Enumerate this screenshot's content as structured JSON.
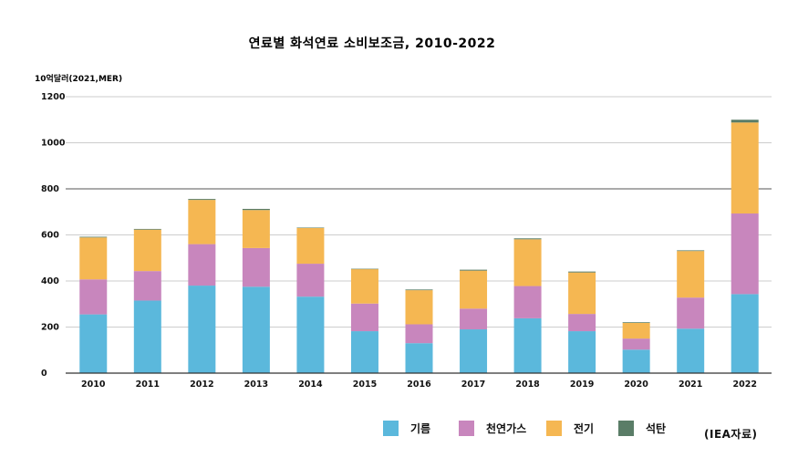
{
  "chart_data": {
    "type": "bar",
    "stacked": true,
    "title": "연료별 화석연료 소비보조금, 2010-2022",
    "unit_label": "10억달러(2021,MER)",
    "source": "(IEA자료)",
    "categories": [
      "2010",
      "2011",
      "2012",
      "2013",
      "2014",
      "2015",
      "2016",
      "2017",
      "2018",
      "2019",
      "2020",
      "2021",
      "2022"
    ],
    "yticks": [
      "0",
      "200",
      "400",
      "600",
      "800",
      "1000",
      "1200"
    ],
    "ylim": [
      0,
      1200
    ],
    "grid": true,
    "legend_position": "bottom",
    "series": [
      {
        "name": "기름",
        "color": "#5bb8dc",
        "values": [
          255,
          315,
          380,
          375,
          332,
          182,
          130,
          190,
          238,
          182,
          102,
          193,
          343
        ]
      },
      {
        "name": "천연가스",
        "color": "#c886bd",
        "values": [
          152,
          128,
          180,
          168,
          143,
          120,
          82,
          90,
          140,
          75,
          48,
          135,
          350
        ]
      },
      {
        "name": "전기",
        "color": "#f5b752",
        "values": [
          182,
          180,
          192,
          165,
          155,
          150,
          148,
          165,
          203,
          180,
          68,
          202,
          395
        ]
      },
      {
        "name": "석탄",
        "color": "#5a7d67",
        "values": [
          3,
          3,
          4,
          5,
          2,
          1,
          3,
          4,
          4,
          4,
          3,
          3,
          12
        ]
      }
    ]
  }
}
